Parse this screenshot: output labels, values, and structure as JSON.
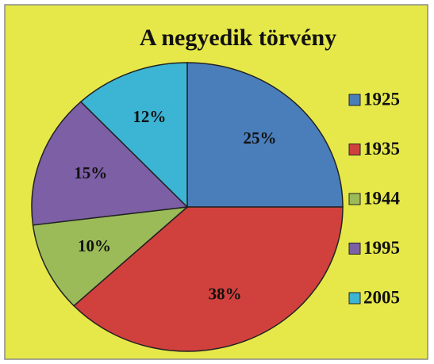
{
  "chart_data": {
    "type": "pie",
    "title": "A negyedik törvény",
    "categories": [
      "1925",
      "1935",
      "1944",
      "1995",
      "2005"
    ],
    "values": [
      25,
      38,
      10,
      15,
      12
    ],
    "value_labels": [
      "25%",
      "38%",
      "10%",
      "15%",
      "12%"
    ],
    "colors": [
      "#4a7ebb",
      "#d0413e",
      "#9bbb59",
      "#7d5fa6",
      "#3cb4d4"
    ],
    "legend": "right"
  }
}
